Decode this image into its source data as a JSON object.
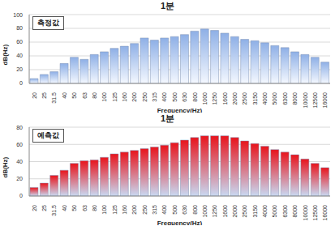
{
  "chart_data": [
    {
      "type": "bar",
      "title": "1분",
      "x_label": "Frequency(Hz)",
      "y_label": "dB(Hz)",
      "categories": [
        "20",
        "25",
        "31.5",
        "40",
        "50",
        "63",
        "80",
        "100",
        "125",
        "160",
        "200",
        "250",
        "315",
        "400",
        "500",
        "630",
        "800",
        "1000",
        "1250",
        "1600",
        "2000",
        "2500",
        "3150",
        "4000",
        "5000",
        "6300",
        "8000",
        "10000",
        "12500",
        "16000"
      ],
      "series": [
        {
          "name": "측정값",
          "color": "#8fb0e6",
          "values": [
            7,
            13,
            17,
            29,
            38,
            35,
            42,
            46,
            51,
            54,
            58,
            66,
            63,
            66,
            68,
            71,
            76,
            79,
            77,
            73,
            68,
            64,
            62,
            59,
            55,
            52,
            46,
            42,
            38,
            31
          ]
        }
      ],
      "ylim": [
        0,
        100
      ],
      "yticks": [
        0,
        20,
        40,
        60,
        80,
        100
      ],
      "grid": true,
      "legend": "upper left"
    },
    {
      "type": "bar",
      "title": "1분",
      "x_label": "Frequency(Hz)",
      "y_label": "dB(Hz)",
      "categories": [
        "20",
        "25",
        "31.5",
        "40",
        "50",
        "63",
        "80",
        "100",
        "125",
        "160",
        "200",
        "250",
        "315",
        "400",
        "500",
        "630",
        "800",
        "1000",
        "1250",
        "1600",
        "2000",
        "2500",
        "3150",
        "4000",
        "5000",
        "6300",
        "8000",
        "10000",
        "12500",
        "16000"
      ],
      "series": [
        {
          "name": "예측값",
          "color": "#e8141c",
          "values": [
            10,
            15,
            24,
            30,
            38,
            41,
            42,
            45,
            49,
            51,
            53,
            55,
            57,
            59,
            62,
            65,
            68,
            70,
            70,
            70,
            68,
            64,
            61,
            58,
            54,
            51,
            48,
            43,
            38,
            33
          ]
        }
      ],
      "ylim": [
        0,
        80
      ],
      "yticks": [
        0,
        20,
        40,
        60,
        80
      ],
      "grid": true,
      "legend": "upper left"
    }
  ]
}
